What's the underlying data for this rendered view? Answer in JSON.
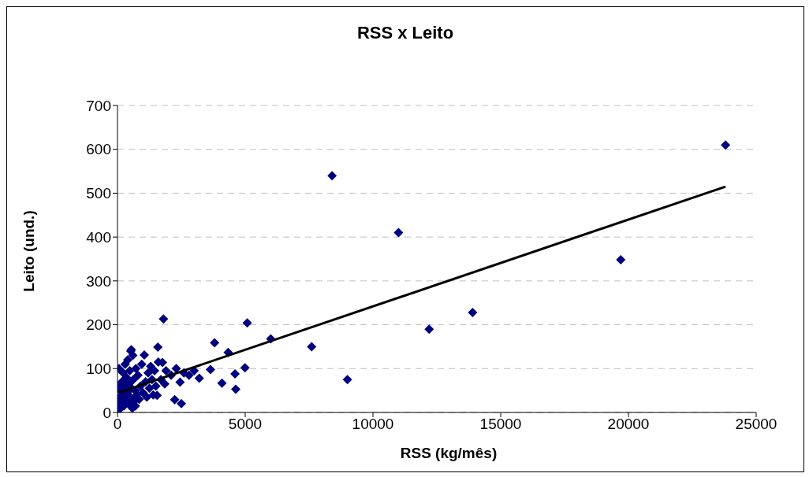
{
  "chart_data": {
    "type": "scatter",
    "title": "RSS x Leito",
    "xlabel": "RSS (kg/mês)",
    "ylabel": "Leito (und.)",
    "xlim": [
      0,
      25000
    ],
    "xticks": [
      0,
      5000,
      10000,
      15000,
      20000,
      25000
    ],
    "ylim": [
      0,
      700
    ],
    "yticks": [
      0,
      100,
      200,
      300,
      400,
      500,
      600,
      700
    ],
    "grid": "y",
    "marker": "diamond",
    "series": [
      {
        "color": "#000080",
        "x": [
          50,
          80,
          100,
          120,
          150,
          180,
          200,
          220,
          250,
          280,
          300,
          320,
          350,
          380,
          400,
          420,
          450,
          480,
          500,
          520,
          550,
          580,
          600,
          620,
          650,
          700,
          720,
          750,
          800,
          850,
          900,
          950,
          1000,
          1050,
          1100,
          1150,
          1200,
          1250,
          1300,
          1350,
          1400,
          1450,
          1500,
          1600,
          1700,
          1900,
          2100,
          2300,
          2600,
          2800,
          3000,
          540,
          30,
          60,
          40,
          700,
          1800,
          1580,
          3800,
          4330,
          2500,
          2240,
          4090,
          4630,
          4990,
          4600,
          3640,
          3200,
          2450,
          1760,
          1850,
          1550,
          5080,
          6000,
          7600,
          8400,
          9000,
          11000,
          12200,
          13900,
          19700,
          23800
        ],
        "values": [
          20,
          35,
          10,
          50,
          25,
          70,
          40,
          90,
          15,
          60,
          110,
          30,
          80,
          45,
          120,
          20,
          65,
          95,
          35,
          140,
          55,
          10,
          130,
          75,
          25,
          50,
          100,
          40,
          85,
          30,
          60,
          110,
          45,
          131,
          70,
          35,
          90,
          55,
          105,
          75,
          40,
          95,
          60,
          115,
          75,
          95,
          85,
          100,
          90,
          85,
          95,
          143,
          60,
          100,
          5,
          15,
          213,
          149,
          159,
          137,
          20,
          29,
          67,
          53,
          102,
          88,
          98,
          78,
          69,
          114,
          65,
          39,
          204,
          168,
          150,
          540,
          75,
          410,
          190,
          228,
          348,
          610
        ]
      },
      {
        "type": "line",
        "color": "#000000",
        "marker": "none",
        "x": [
          50,
          23800
        ],
        "values": [
          45,
          515
        ]
      }
    ]
  }
}
